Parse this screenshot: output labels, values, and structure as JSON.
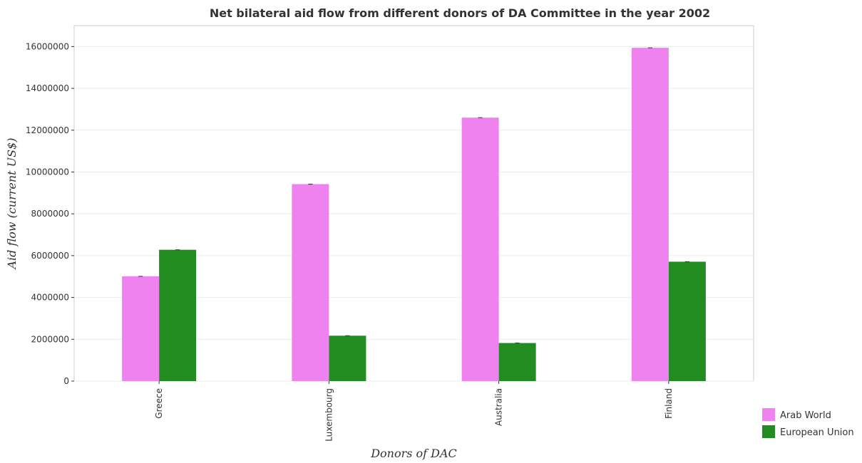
{
  "chart_data": {
    "type": "bar",
    "title": "Net bilateral aid flow from different donors of DA Committee in the year 2002",
    "xlabel": "Donors of DAC",
    "ylabel": "Aid flow (current US$)",
    "categories": [
      "Greece",
      "Luxembourg",
      "Australia",
      "Finland"
    ],
    "series": [
      {
        "name": "Arab World",
        "color": "#ee82ee",
        "values": [
          5010000,
          9420000,
          12600000,
          15940000
        ]
      },
      {
        "name": "European Union",
        "color": "#228b22",
        "values": [
          6280000,
          2170000,
          1820000,
          5710000
        ]
      }
    ],
    "ylim": [
      0,
      17000000
    ],
    "yticks": [
      0,
      2000000,
      4000000,
      6000000,
      8000000,
      10000000,
      12000000,
      14000000,
      16000000
    ],
    "ytick_labels": [
      "0",
      "2000000",
      "4000000",
      "6000000",
      "8000000",
      "10000000",
      "12000000",
      "14000000",
      "16000000"
    ],
    "grid": true,
    "legend_position": "bottom-right"
  }
}
